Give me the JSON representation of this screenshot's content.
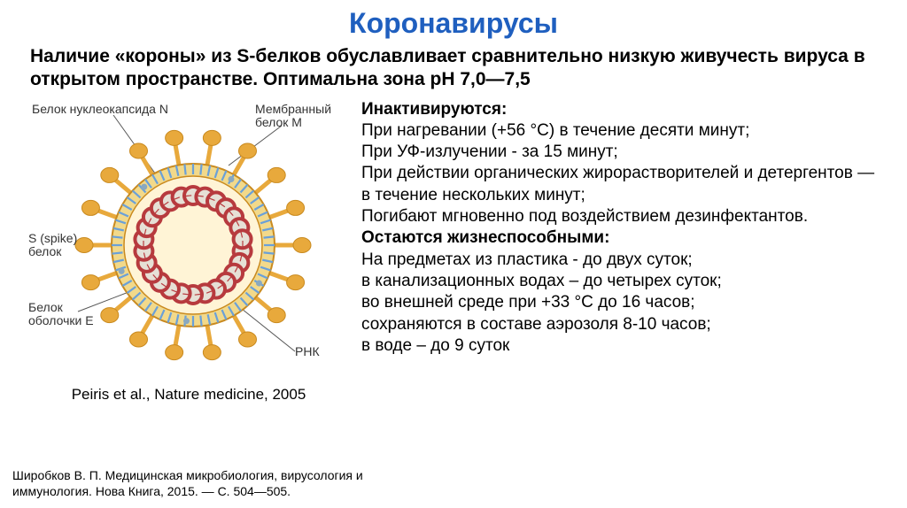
{
  "title": "Коронавирусы",
  "title_color": "#1f5fbf",
  "subtitle": "Наличие «короны» из S-белков обуславливает сравнительно низкую живучесть вируса в открытом пространстве. Оптимальна зона pH 7,0—7,5",
  "diagram": {
    "labels": {
      "nucleocapsid": "Белок нуклеокапсида N",
      "membrane": "Мембранный\nбелок M",
      "spike": "S (spike)\nбелок",
      "envelope": "Белок\nоболочки E",
      "rna": "РНК"
    },
    "colors": {
      "spike": "#e8a93c",
      "spike_stroke": "#c98a1f",
      "envelope_ring": "#f2d98a",
      "envelope_stroke": "#c98a1f",
      "inner_bg": "#fff4d6",
      "m_protein": "#6aa0d8",
      "e_protein": "#8aa8bf",
      "rna_outer": "#b73a3e",
      "rna_inner": "#e6e0d6",
      "label_line": "#555555"
    },
    "caption": "Peiris et al., Nature medicine, 2005"
  },
  "right": {
    "inact_heading": "Инактивируются:",
    "inact_items": [
      "При нагревании (+56 °C) в течение десяти минут;",
      "При УФ-излучении - за 15 минут;",
      "При действии органических жирорастворителей и детергентов — в течение нескольких минут;",
      "Погибают мгновенно под воздействием дезинфектантов."
    ],
    "viable_heading": "Остаются жизнеспособными:",
    "viable_items": [
      "На предметах из пластика - до двух суток;",
      "в канализационных водах – до четырех суток;",
      "во внешней среде при +33 °C до 16 часов;",
      "сохраняются в составе аэрозоля 8-10 часов;",
      "в воде – до 9 суток"
    ]
  },
  "reference": "Широбков В. П. Медицинская микробиология, вирусология и иммунология. Нова Книга, 2015. — С. 504—505."
}
